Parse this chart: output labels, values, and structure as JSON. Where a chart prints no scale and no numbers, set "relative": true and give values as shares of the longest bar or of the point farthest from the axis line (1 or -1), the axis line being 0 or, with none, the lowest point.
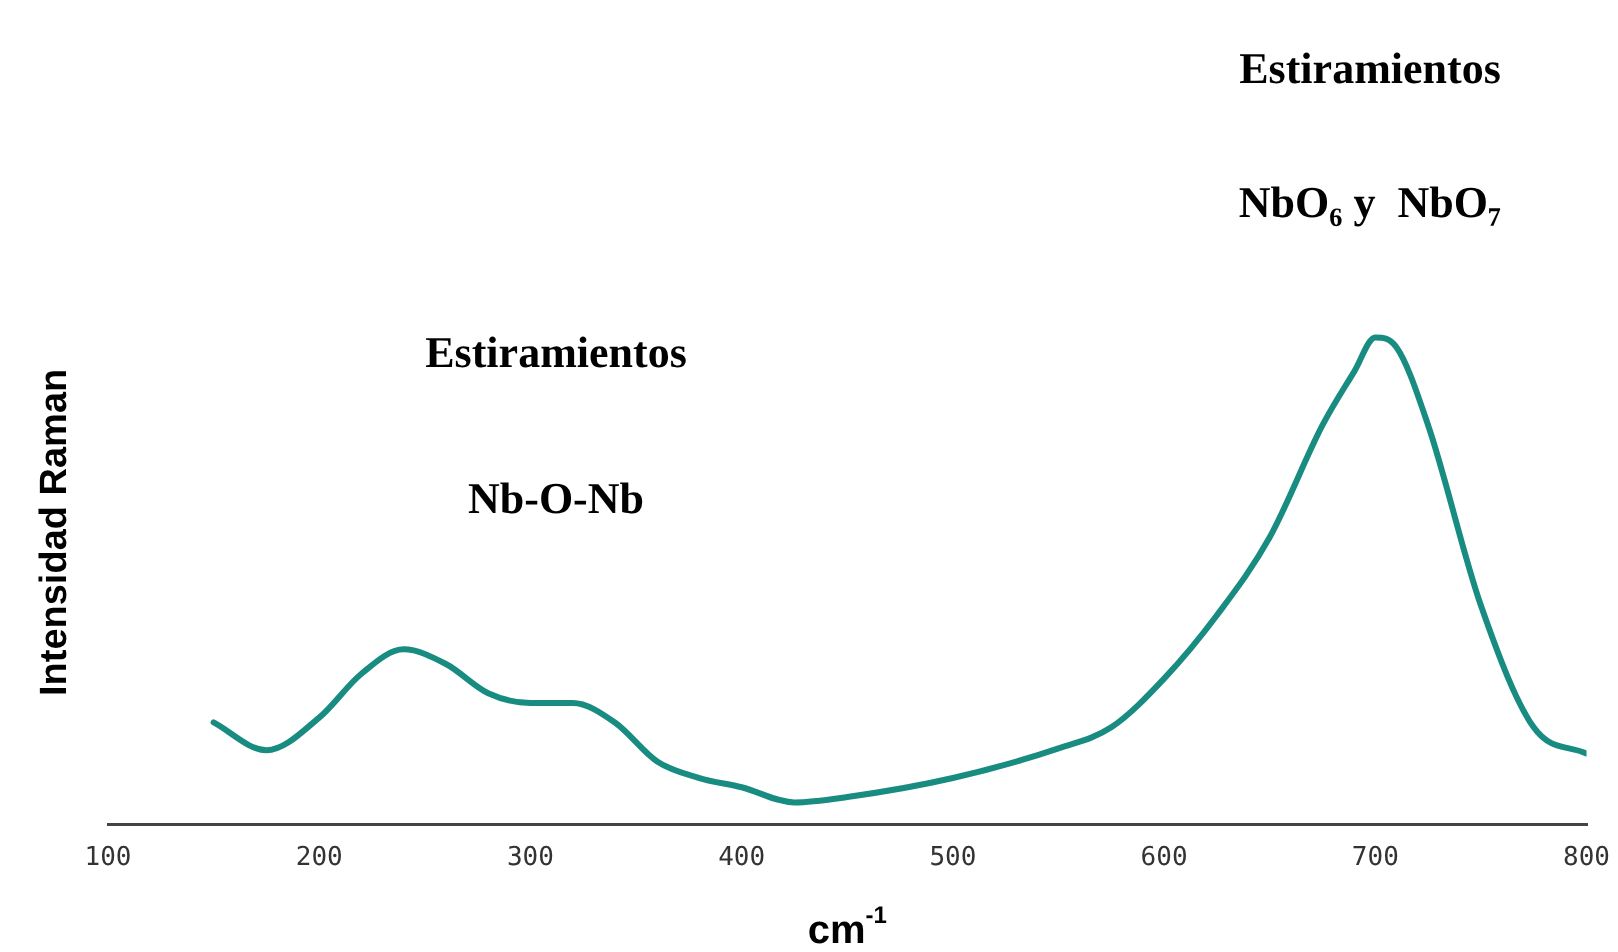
{
  "chart_data": {
    "type": "line",
    "relative": true,
    "xlabel": "cm$^{-1}$",
    "ylabel": "Intensidad Raman",
    "annotations": [
      "Estiramientos",
      "Nb-O-Nb",
      "Estiramientos",
      "NbO₆ y  NbO₇"
    ],
    "xlim": [
      100,
      800
    ],
    "xticks": [
      100,
      200,
      300,
      400,
      500,
      600,
      700,
      800
    ],
    "grid": false,
    "legend": false,
    "marker": "none",
    "line_style": "solid",
    "series": [
      {
        "color": "#198c82",
        "x": [
          150,
          175,
          200,
          220,
          240,
          260,
          280,
          300,
          320,
          340,
          360,
          380,
          400,
          425,
          450,
          500,
          550,
          575,
          600,
          625,
          650,
          675,
          690,
          700,
          710,
          725,
          750,
          775,
          800
        ],
        "values": [
          0.21,
          0.153,
          0.22,
          0.31,
          0.36,
          0.33,
          0.27,
          0.25,
          0.25,
          0.21,
          0.13,
          0.096,
          0.077,
          0.046,
          0.057,
          0.096,
          0.157,
          0.2,
          0.3,
          0.43,
          0.59,
          0.82,
          0.93,
          1.0,
          0.98,
          0.82,
          0.45,
          0.2,
          0.146
        ]
      }
    ]
  }
}
